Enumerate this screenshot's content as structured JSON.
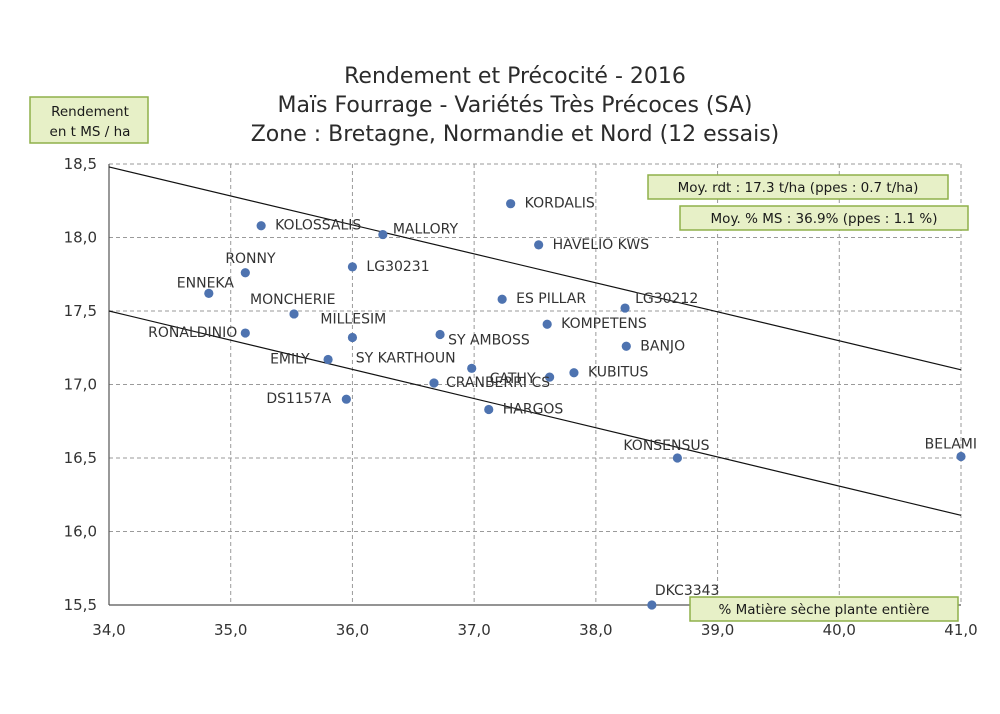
{
  "chart_data": {
    "type": "scatter",
    "title": [
      "Rendement et Précocité - 2016",
      "Maïs Fourrage - Variétés Très Précoces (SA)",
      "Zone : Bretagne, Normandie et Nord (12 essais)"
    ],
    "xlabel": "% Matière sèche plante entière",
    "ylabel": [
      "Rendement",
      "en t MS / ha"
    ],
    "xlim": [
      34.0,
      41.0
    ],
    "ylim": [
      15.5,
      18.5
    ],
    "xticks": [
      "34,0",
      "35,0",
      "36,0",
      "37,0",
      "38,0",
      "39,0",
      "40,0",
      "41,0"
    ],
    "yticks": [
      "15,5",
      "16,0",
      "16,5",
      "17,0",
      "17,5",
      "18,0",
      "18,5"
    ],
    "grid": true,
    "annotations": [
      "Moy. rdt : 17.3 t/ha  (ppes : 0.7 t/ha)",
      "Moy. % MS : 36.9% (ppes : 1.1 %)"
    ],
    "color": "#4e73b0",
    "lines": [
      {
        "x": [
          34.0,
          41.0
        ],
        "y": [
          18.48,
          17.1
        ]
      },
      {
        "x": [
          34.0,
          41.0
        ],
        "y": [
          17.5,
          16.11
        ]
      }
    ],
    "points": [
      {
        "label": "KORDALIS",
        "x": 37.3,
        "y": 18.23
      },
      {
        "label": "KOLOSSALIS",
        "x": 35.25,
        "y": 18.08
      },
      {
        "label": "MALLORY",
        "x": 36.25,
        "y": 18.02
      },
      {
        "label": "HAVELIO KWS",
        "x": 37.53,
        "y": 17.95
      },
      {
        "label": "RONNY",
        "x": 35.12,
        "y": 17.76
      },
      {
        "label": "LG30231",
        "x": 36.0,
        "y": 17.8
      },
      {
        "label": "ENNEKA",
        "x": 34.82,
        "y": 17.62
      },
      {
        "label": "MONCHERIE",
        "x": 35.52,
        "y": 17.48
      },
      {
        "label": "ES PILLAR",
        "x": 37.23,
        "y": 17.58
      },
      {
        "label": "LG30212",
        "x": 38.24,
        "y": 17.52
      },
      {
        "label": "MILLESIM",
        "x": 36.0,
        "y": 17.32
      },
      {
        "label": "KOMPETENS",
        "x": 37.6,
        "y": 17.41
      },
      {
        "label": "RONALDINIO",
        "x": 35.12,
        "y": 17.35
      },
      {
        "label": "SY AMBOSS",
        "x": 36.72,
        "y": 17.34
      },
      {
        "label": "BANJO",
        "x": 38.25,
        "y": 17.26
      },
      {
        "label": "EMILY",
        "x": 35.8,
        "y": 17.17
      },
      {
        "label": "SY KARTHOUN",
        "x": 36.98,
        "y": 17.11
      },
      {
        "label": "CATHY",
        "x": 37.62,
        "y": 17.05
      },
      {
        "label": "KUBITUS",
        "x": 37.82,
        "y": 17.08
      },
      {
        "label": "DS1157A",
        "x": 35.95,
        "y": 16.9
      },
      {
        "label": "CRANBERRI CS",
        "x": 36.67,
        "y": 17.01
      },
      {
        "label": "HARGOS",
        "x": 37.12,
        "y": 16.83
      },
      {
        "label": "KONSENSUS",
        "x": 38.67,
        "y": 16.5
      },
      {
        "label": "BELAMI",
        "x": 41.0,
        "y": 16.51
      },
      {
        "label": "DKC3343",
        "x": 38.46,
        "y": 15.5
      }
    ]
  }
}
